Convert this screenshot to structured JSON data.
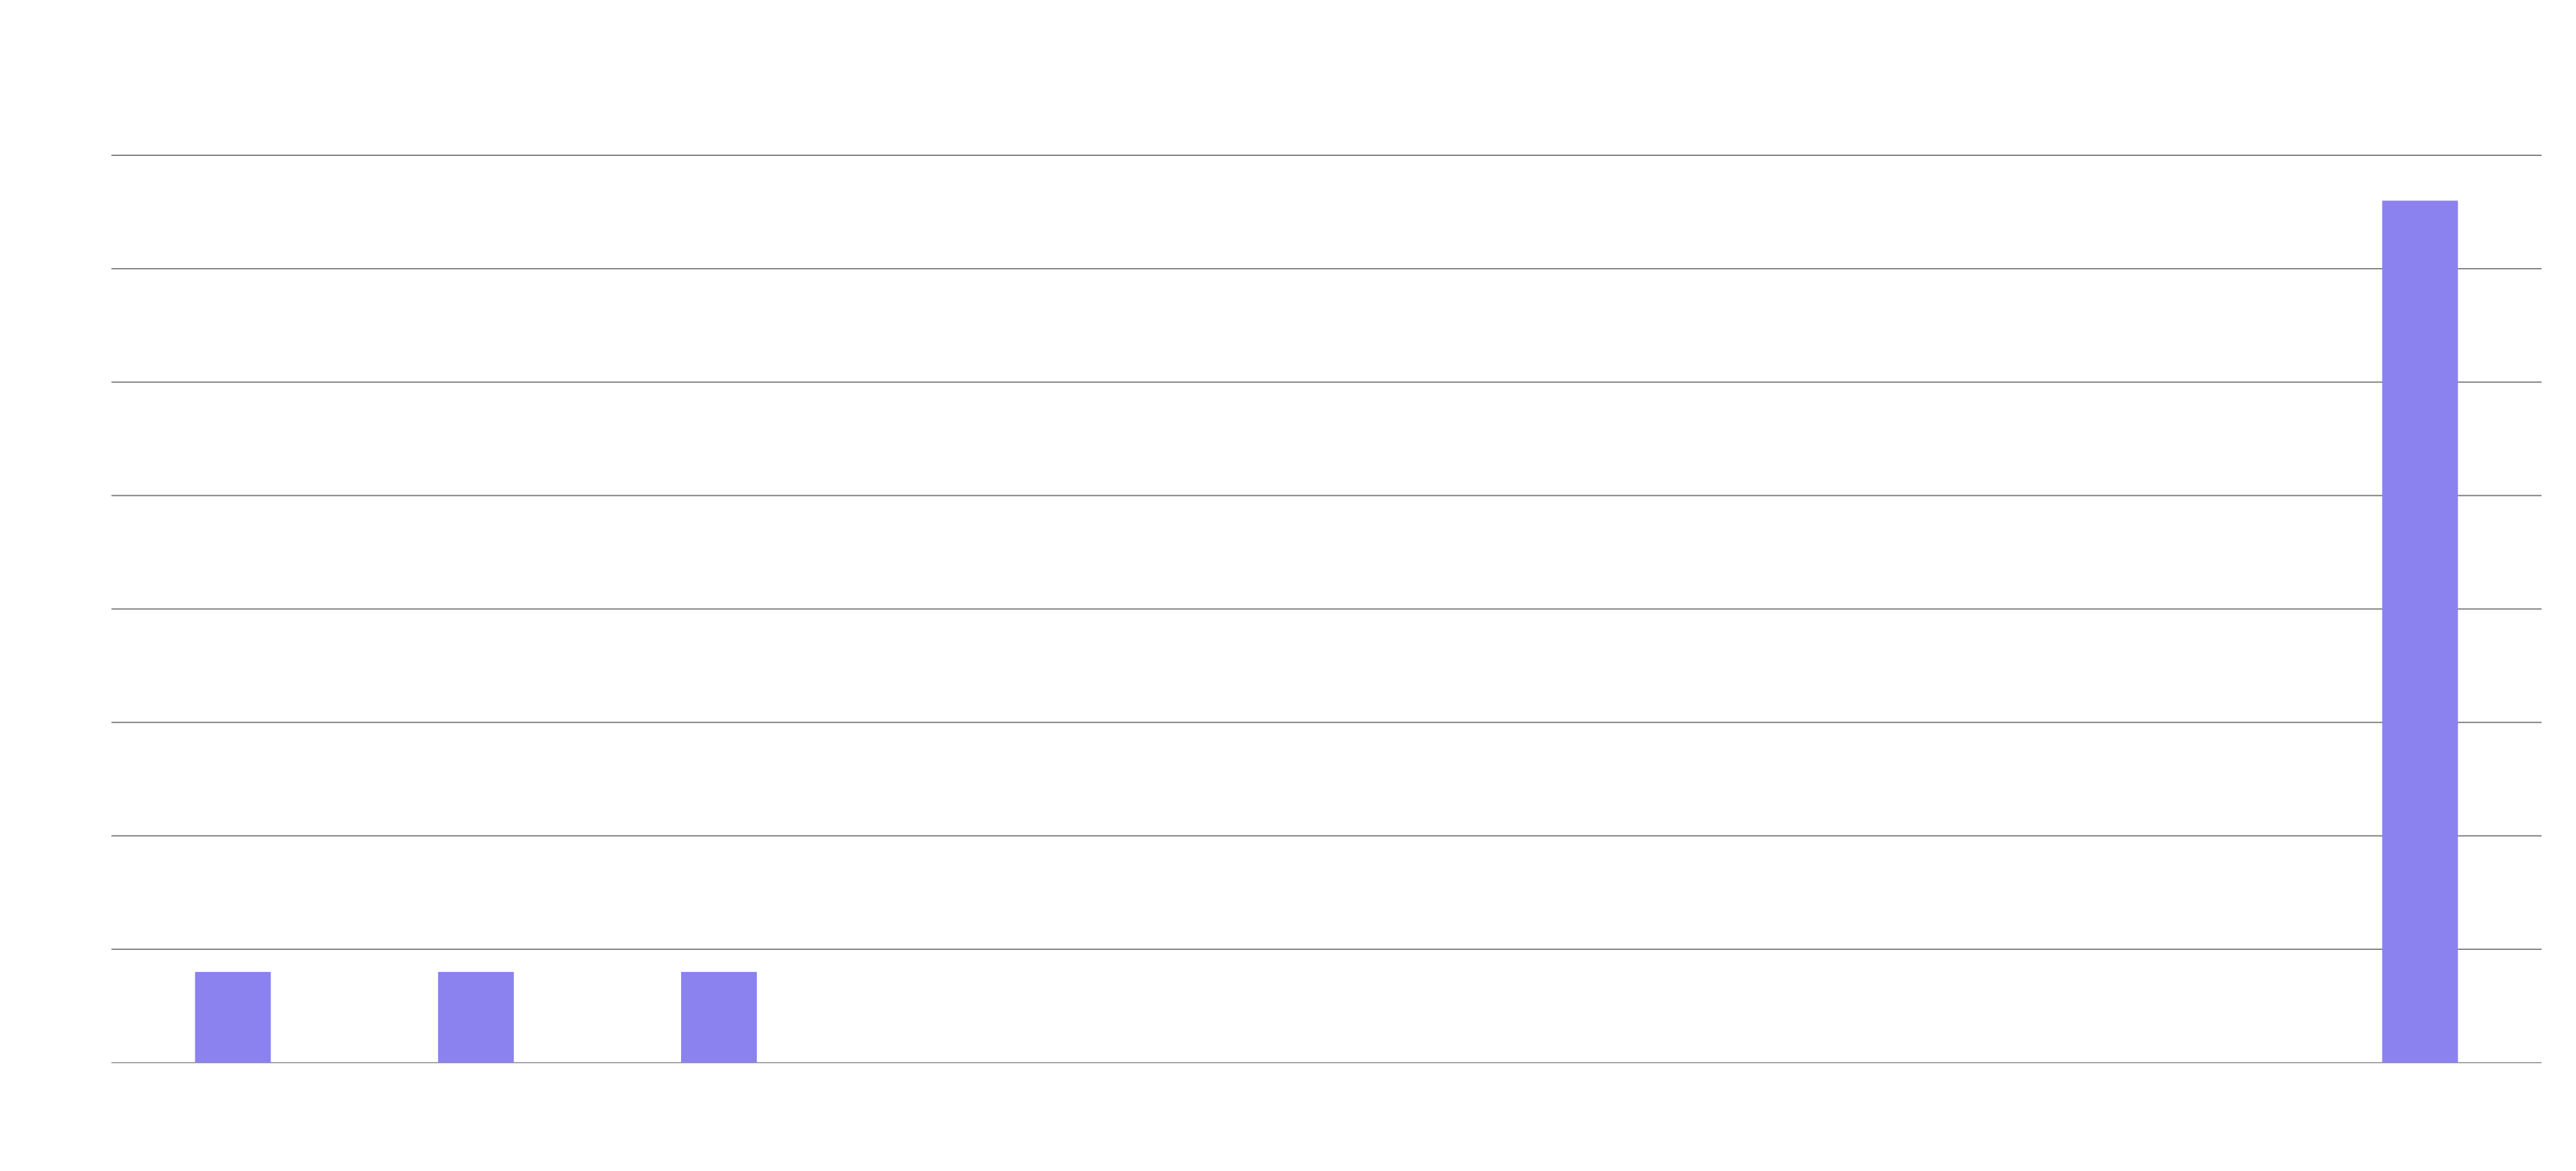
{
  "chart_data": {
    "type": "bar",
    "categories": [
      "",
      "",
      "",
      "",
      "",
      "",
      "",
      "",
      "",
      ""
    ],
    "values": [
      0.8,
      0.8,
      0.8,
      0,
      0,
      0,
      0,
      0,
      0,
      7.6
    ],
    "title": "",
    "xlabel": "",
    "ylabel": "",
    "ylim": [
      0,
      8
    ],
    "y_ticks": [
      0,
      1,
      2,
      3,
      4,
      5,
      6,
      7,
      8
    ],
    "grid": true,
    "bar_color": "#8b82ef",
    "grid_color": "#7a7a7a"
  }
}
